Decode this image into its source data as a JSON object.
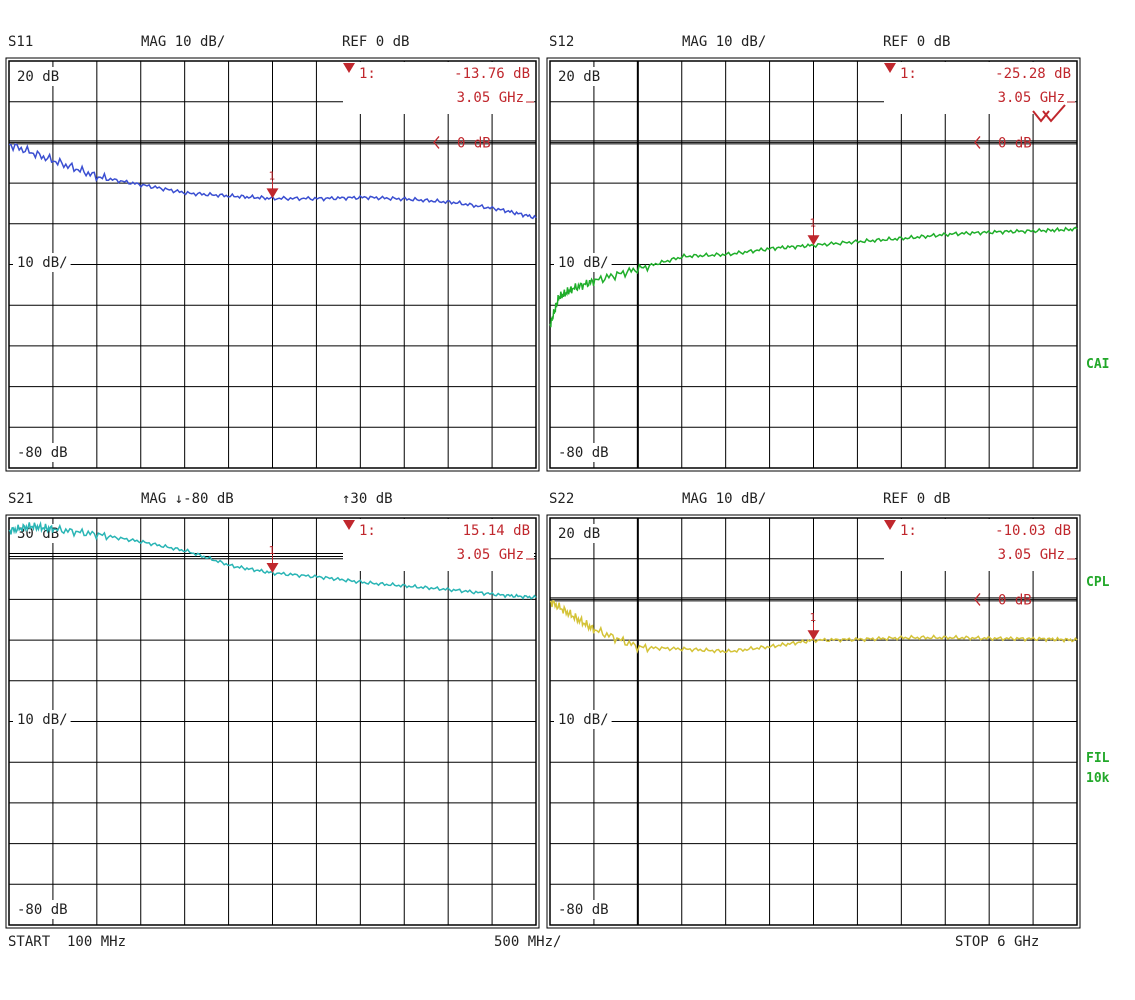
{
  "footer": {
    "start": "START  100 MHz",
    "div": "500 MHz/",
    "stop": "STOP 6 GHz"
  },
  "side_labels": {
    "cal": "CAI",
    "cpl": "CPL",
    "fil": "FIL",
    "fil_value": "10k"
  },
  "colors": {
    "marker": "#c0272d",
    "grid": "#000000",
    "side": "#22a82a"
  },
  "chart_data": [
    {
      "type": "line",
      "param": "S11",
      "format": "MAG 10 dB/",
      "ref": "REF 0 dB",
      "ref_marker_label": "0 dB",
      "ref_marker_style": "arrow",
      "scale_labels": {
        "top": "20 dB",
        "mid": "10 dB/",
        "bottom": "-80 dB"
      },
      "ylim": [
        -80,
        20
      ],
      "xlim_ghz": [
        0.1,
        6
      ],
      "ref_db": 0,
      "color": "#3b4fd1",
      "marker": {
        "label": "1:",
        "value": "-13.76 dB",
        "freq": "3.05 GHz",
        "number": "1",
        "x_ghz": 3.05,
        "y_db": -13.76
      },
      "series": [
        {
          "x": [
            0.1,
            0.6,
            1.1,
            1.6,
            2.1,
            2.6,
            3.05,
            3.6,
            4.1,
            4.6,
            5.1,
            5.6,
            6.0
          ],
          "y": [
            -0.5,
            -4.5,
            -8.5,
            -10.5,
            -12.5,
            -13.2,
            -13.76,
            -13.8,
            -13.5,
            -14.0,
            -14.8,
            -16.5,
            -18.5
          ]
        }
      ]
    },
    {
      "type": "line",
      "param": "S12",
      "format": "MAG 10 dB/",
      "ref": "REF 0 dB",
      "ref_marker_label": "0 dB",
      "ref_marker_style": "arrow",
      "scale_labels": {
        "top": "20 dB",
        "mid": "10 dB/",
        "bottom": "-80 dB"
      },
      "ylim": [
        -80,
        20
      ],
      "xlim_ghz": [
        0.1,
        6
      ],
      "ref_db": 0,
      "color": "#1fae2a",
      "marker": {
        "label": "1:",
        "value": "-25.28 dB",
        "freq": "3.05 GHz",
        "number": "1",
        "x_ghz": 3.05,
        "y_db": -25.28
      },
      "series": [
        {
          "x": [
            0.1,
            0.2,
            0.35,
            0.6,
            1.1,
            1.6,
            2.1,
            2.6,
            3.05,
            3.6,
            4.1,
            4.6,
            5.1,
            5.6,
            6.0
          ],
          "y": [
            -45,
            -38,
            -36,
            -34,
            -31,
            -28,
            -27.5,
            -26,
            -25.28,
            -24.3,
            -23.5,
            -22.5,
            -22.0,
            -21.7,
            -21.3
          ]
        }
      ]
    },
    {
      "type": "line",
      "param": "S21",
      "format": "MAG ↓-80 dB",
      "ref": "↑30 dB",
      "ref_marker_label": "",
      "ref_marker_style": "none",
      "scale_labels": {
        "top": "30 dB",
        "mid": "10 dB/",
        "bottom": "-80 dB"
      },
      "ylim": [
        -80,
        30
      ],
      "xlim_ghz": [
        0.1,
        6
      ],
      "ref_db": 20,
      "color": "#2ab5b5",
      "marker": {
        "label": "1:",
        "value": "15.14 dB",
        "freq": "3.05 GHz",
        "number": "1",
        "x_ghz": 3.05,
        "y_db": 15.14
      },
      "series": [
        {
          "x": [
            0.1,
            0.35,
            0.6,
            1.1,
            1.6,
            2.1,
            2.6,
            3.05,
            3.6,
            4.1,
            4.6,
            5.1,
            5.6,
            6.0
          ],
          "y": [
            26.5,
            27.8,
            27.0,
            25.5,
            23.5,
            21.0,
            17.0,
            15.14,
            14.0,
            12.5,
            11.5,
            10.5,
            9.2,
            8.5
          ]
        }
      ]
    },
    {
      "type": "line",
      "param": "S22",
      "format": "MAG 10 dB/",
      "ref": "REF 0 dB",
      "ref_marker_label": "0 dB",
      "ref_marker_style": "arrow",
      "scale_labels": {
        "top": "20 dB",
        "mid": "10 dB/",
        "bottom": "-80 dB"
      },
      "ylim": [
        -80,
        20
      ],
      "xlim_ghz": [
        0.1,
        6
      ],
      "ref_db": 0,
      "color": "#d4c338",
      "marker": {
        "label": "1:",
        "value": "-10.03 dB",
        "freq": "3.05 GHz",
        "number": "1",
        "x_ghz": 3.05,
        "y_db": -10.03
      },
      "series": [
        {
          "x": [
            0.1,
            0.35,
            0.6,
            1.1,
            1.6,
            2.1,
            2.6,
            3.05,
            3.6,
            4.1,
            4.6,
            5.1,
            5.6,
            6.0
          ],
          "y": [
            -0.5,
            -4.0,
            -7.5,
            -11.8,
            -12.2,
            -12.8,
            -11.5,
            -10.03,
            -9.8,
            -9.4,
            -9.4,
            -9.6,
            -9.7,
            -10.0
          ]
        }
      ]
    }
  ]
}
